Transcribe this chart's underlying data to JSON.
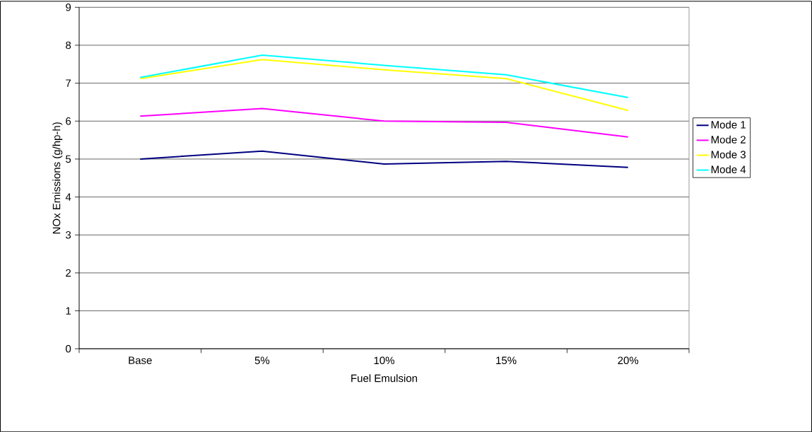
{
  "chart_data": {
    "type": "line",
    "xlabel": "Fuel Emulsion",
    "ylabel": "NOx Emissions (g/hp-h)",
    "categories": [
      "Base",
      "5%",
      "10%",
      "15%",
      "20%"
    ],
    "series": [
      {
        "name": "Mode 1",
        "color": "#000080",
        "values": [
          5.0,
          5.21,
          4.87,
          4.94,
          4.78
        ]
      },
      {
        "name": "Mode 2",
        "color": "#ff00ff",
        "values": [
          6.13,
          6.33,
          6.0,
          5.97,
          5.58
        ]
      },
      {
        "name": "Mode 3",
        "color": "#ffff00",
        "values": [
          7.12,
          7.62,
          7.35,
          7.12,
          6.28
        ]
      },
      {
        "name": "Mode 4",
        "color": "#00ffff",
        "values": [
          7.15,
          7.74,
          7.47,
          7.22,
          6.62
        ]
      }
    ],
    "ylim": [
      0,
      9
    ],
    "yticks": [
      0,
      1,
      2,
      3,
      4,
      5,
      6,
      7,
      8,
      9
    ],
    "grid": "y",
    "legend": "right",
    "marker": "none",
    "line_style": "solid"
  }
}
